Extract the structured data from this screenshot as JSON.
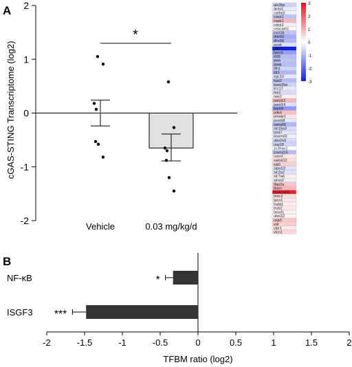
{
  "panel_a": {
    "letter": "A",
    "ylabel": "cGAS-STING Transcriptome (log2)",
    "significance": "*"
  },
  "panel_b": {
    "letter": "B",
    "xlabel": "TFBM ratio (log2)"
  },
  "heatmap": {
    "legend_ticks": [
      "3",
      "2",
      "1",
      "0",
      "-1",
      "-2",
      "-3"
    ],
    "colors": {
      "high": "#e8101c",
      "mid": "#ffffff",
      "low": "#1020e0"
    }
  },
  "chart_data": [
    {
      "type": "bar",
      "title": "",
      "xlabel": "",
      "ylabel": "cGAS-STING Transcriptome (log2)",
      "ylim": [
        -2,
        2
      ],
      "yticks": [
        "-2",
        "-1",
        "0",
        "1",
        "2"
      ],
      "categories": [
        "Vehicle",
        "0.03 mg/kg/d"
      ],
      "values": [
        0.0,
        -0.65
      ],
      "error_low": [
        -0.24,
        -0.89
      ],
      "error_high": [
        0.24,
        -0.39
      ],
      "points": [
        [
          1.05,
          0.91,
          0.18,
          0.07,
          -0.53,
          -0.58,
          -0.82
        ],
        [
          0.58,
          -0.27,
          -0.65,
          -0.7,
          -0.88,
          -1.2,
          -1.45
        ]
      ],
      "significance": "*",
      "bar_colors": [
        "#ffffff",
        "#e0e0e0"
      ]
    },
    {
      "type": "bar",
      "orientation": "horizontal",
      "title": "",
      "xlabel": "TFBM ratio (log2)",
      "ylabel": "",
      "xlim": [
        -2,
        2
      ],
      "xticks": [
        "-2",
        "-1.5",
        "-1",
        "-0.5",
        "0",
        "0.5",
        "1",
        "1.5",
        "2"
      ],
      "categories": [
        "NF-κB",
        "ISGF3"
      ],
      "values": [
        -0.33,
        -1.48
      ],
      "error": [
        0.1,
        0.18
      ],
      "significance": [
        "*",
        "***"
      ],
      "bar_color": "#333333"
    },
    {
      "type": "heatmap",
      "genes": [
        "abi3bp",
        "acss1",
        "carbp2",
        "casp1",
        "casp1",
        "cdcp1",
        "ceacam1",
        "cxcl16",
        "ddx60",
        "dhx58",
        "epsti",
        "gbp4",
        "herc6",
        "ifi35",
        "ifi44",
        "ifi44l",
        "ifih1",
        "ifit3",
        "irgc10",
        "itga2",
        "lgals3bp",
        "lrrc17",
        "mx1",
        "oas2",
        "parp12",
        "parp14",
        "parp9",
        "pdk4",
        "pmaip1",
        "psmb8",
        "samd9l",
        "slc15a3",
        "tdrd7",
        "tmem02",
        "ube2e3",
        "usp18",
        "zc3hav1",
        "znynd15",
        "runx2",
        "samd12",
        "sat1",
        "sipa1l2",
        "slc2a2",
        "slc7a6",
        "stmn2",
        "tfap2a",
        "tbarc",
        "tmem45b",
        "tmtc3",
        "tpcn1",
        "trafd1",
        "trub2",
        "txnrd1",
        "ube2j2",
        "usp3",
        "vdr",
        "vipr1",
        "vtcn1"
      ],
      "values": [
        -0.6,
        -0.3,
        -0.2,
        -0.8,
        0.9,
        -0.2,
        0.1,
        -0.8,
        -1.1,
        -1.0,
        -0.4,
        -3.0,
        -1.3,
        -0.9,
        -0.8,
        -0.9,
        -0.6,
        -1.0,
        -0.3,
        -0.9,
        -0.6,
        -0.3,
        -0.5,
        0.2,
        0.9,
        -0.4,
        -1.4,
        0.8,
        0.3,
        -0.3,
        -1.0,
        -0.5,
        -0.4,
        -0.2,
        -0.5,
        -0.6,
        0.0,
        -0.9,
        0.3,
        0.4,
        0.6,
        -0.4,
        -0.4,
        0.2,
        -0.2,
        0.7,
        0.9,
        2.8,
        0.4,
        0.3,
        0.2,
        0.3,
        0.2,
        0.1,
        0.7,
        0.6,
        0.3,
        0.5
      ],
      "range": [
        -3,
        3
      ]
    }
  ]
}
